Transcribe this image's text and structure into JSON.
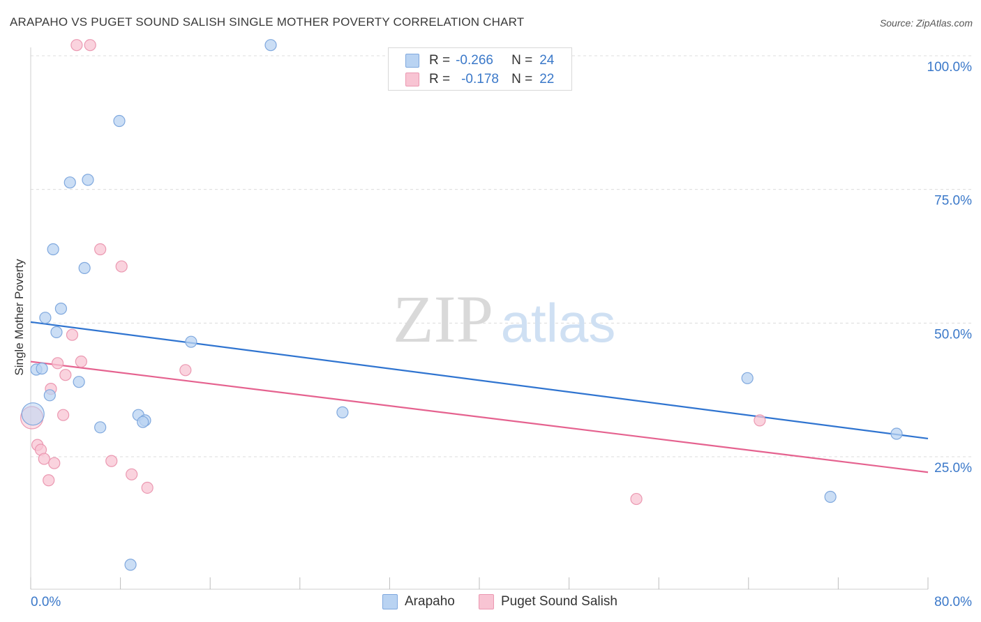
{
  "header": {
    "title": "ARAPAHO VS PUGET SOUND SALISH SINGLE MOTHER POVERTY CORRELATION CHART",
    "source": "Source: ZipAtlas.com"
  },
  "legend": {
    "series": [
      {
        "name": "Arapaho",
        "r_label": "R =",
        "r_value": "-0.266",
        "n_label": "N =",
        "n_value": "24"
      },
      {
        "name": "Puget Sound Salish",
        "r_label": "R =",
        "r_value": "-0.178",
        "n_label": "N =",
        "n_value": "22"
      }
    ]
  },
  "watermark": {
    "zip": "ZIP",
    "atlas": "atlas"
  },
  "chart_data": {
    "type": "scatter",
    "title": "ARAPAHO VS PUGET SOUND SALISH SINGLE MOTHER POVERTY CORRELATION CHART",
    "xlabel": "",
    "ylabel": "Single Mother Poverty",
    "xlim": [
      0,
      80
    ],
    "ylim": [
      0,
      102
    ],
    "x_tick_labels": [
      "0.0%",
      "80.0%"
    ],
    "y_tick_values": [
      25,
      50,
      75,
      100
    ],
    "y_tick_labels": [
      "25.0%",
      "50.0%",
      "75.0%",
      "100.0%"
    ],
    "colors": {
      "arapaho_fill": "#b9d3f2",
      "arapaho_stroke": "#7fa8de",
      "arapaho_line": "#2f74d0",
      "salish_fill": "#f8c4d3",
      "salish_stroke": "#eb98b1",
      "salish_line": "#e5628f",
      "tick_text": "#3a78c9",
      "grid": "#dcdcdc"
    },
    "series": [
      {
        "name": "Arapaho",
        "points": [
          {
            "x": 21.4,
            "y": 102.0
          },
          {
            "x": 7.9,
            "y": 87.8
          },
          {
            "x": 3.5,
            "y": 76.3
          },
          {
            "x": 5.1,
            "y": 76.8
          },
          {
            "x": 2.0,
            "y": 63.8
          },
          {
            "x": 4.8,
            "y": 60.3
          },
          {
            "x": 2.7,
            "y": 52.7
          },
          {
            "x": 1.3,
            "y": 51.0
          },
          {
            "x": 2.3,
            "y": 48.3
          },
          {
            "x": 14.3,
            "y": 46.5
          },
          {
            "x": 0.5,
            "y": 41.3
          },
          {
            "x": 1.0,
            "y": 41.5
          },
          {
            "x": 4.3,
            "y": 39.0
          },
          {
            "x": 1.7,
            "y": 36.5
          },
          {
            "x": 0.2,
            "y": 33.0
          },
          {
            "x": 9.6,
            "y": 32.8
          },
          {
            "x": 10.2,
            "y": 31.8
          },
          {
            "x": 10.0,
            "y": 31.5
          },
          {
            "x": 6.2,
            "y": 30.5
          },
          {
            "x": 27.8,
            "y": 33.3
          },
          {
            "x": 63.9,
            "y": 39.7
          },
          {
            "x": 77.2,
            "y": 29.3
          },
          {
            "x": 71.3,
            "y": 17.5
          },
          {
            "x": 8.9,
            "y": 4.8
          }
        ],
        "trend": {
          "x": [
            0,
            80
          ],
          "y": [
            50.2,
            28.4
          ]
        }
      },
      {
        "name": "Puget Sound Salish",
        "points": [
          {
            "x": 4.1,
            "y": 102.0
          },
          {
            "x": 5.3,
            "y": 102.0
          },
          {
            "x": 6.2,
            "y": 63.8
          },
          {
            "x": 8.1,
            "y": 60.6
          },
          {
            "x": 3.7,
            "y": 47.8
          },
          {
            "x": 2.4,
            "y": 42.5
          },
          {
            "x": 4.5,
            "y": 42.8
          },
          {
            "x": 3.1,
            "y": 40.3
          },
          {
            "x": 13.8,
            "y": 41.2
          },
          {
            "x": 1.8,
            "y": 37.7
          },
          {
            "x": 0.1,
            "y": 32.3
          },
          {
            "x": 2.9,
            "y": 32.8
          },
          {
            "x": 0.6,
            "y": 27.2
          },
          {
            "x": 0.9,
            "y": 26.3
          },
          {
            "x": 1.2,
            "y": 24.6
          },
          {
            "x": 2.1,
            "y": 23.8
          },
          {
            "x": 7.2,
            "y": 24.2
          },
          {
            "x": 1.6,
            "y": 20.6
          },
          {
            "x": 9.0,
            "y": 21.7
          },
          {
            "x": 10.4,
            "y": 19.2
          },
          {
            "x": 54.0,
            "y": 17.1
          },
          {
            "x": 65.0,
            "y": 31.8
          }
        ],
        "trend": {
          "x": [
            0,
            80
          ],
          "y": [
            42.8,
            22.1
          ]
        }
      }
    ]
  }
}
